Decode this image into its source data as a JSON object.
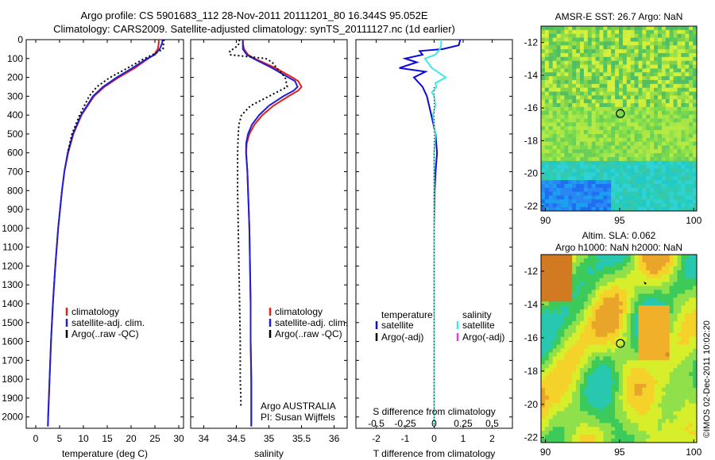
{
  "header": {
    "line1": "Argo profile: CS 5901683_112 28-Nov-2011 20111201_80 16.344S 95.052E",
    "line2": "Climatology: CARS2009. Satellite-adjusted climatology: synTS_20111127.nc (1d earlier)"
  },
  "colors": {
    "climatology": "#e0201b",
    "satellite": "#1f1fd6",
    "argo": "#000000",
    "t_satellite": "#0a0adc",
    "s_satellite": "#3ee8e8",
    "s_argo": "#e040e0"
  },
  "depth_axis": {
    "ticks": [
      0,
      100,
      200,
      300,
      400,
      500,
      600,
      700,
      800,
      900,
      1000,
      1100,
      1200,
      1300,
      1400,
      1500,
      1600,
      1700,
      1800,
      1900,
      2000
    ],
    "ylim": [
      0,
      2060
    ]
  },
  "panels": {
    "temperature": {
      "xlabel": "temperature (deg C)",
      "xticks": [
        "0",
        "5",
        "10",
        "15",
        "20",
        "25",
        "30"
      ],
      "legend": [
        "climatology",
        "satellite-adj. clim.",
        "Argo(..raw -QC)"
      ]
    },
    "salinity": {
      "xlabel": "salinity",
      "xticks": [
        "34",
        "34.5",
        "35",
        "35.5",
        "36"
      ],
      "legend": [
        "climatology",
        "satellite-adj. clim.",
        "Argo(..raw -QC)"
      ],
      "note1": "Argo AUSTRALIA",
      "note2": "PI: Susan Wijffels"
    },
    "difference": {
      "xlabel": "T difference from climatology",
      "toplabel": "S difference from climatology",
      "xticks": [
        "-2",
        "-1",
        "0",
        "1",
        "2"
      ],
      "sticks": [
        "-0.5",
        "-0.25",
        "0",
        "0.25",
        "0.5"
      ],
      "legend_t_head": "temperature",
      "legend_s_head": "salinity",
      "legend_sat": "satellite",
      "legend_argo": "Argo(-adj)"
    }
  },
  "maps": {
    "sst": {
      "title": "AMSR-E SST: 26.7  Argo: NaN",
      "yticks": [
        "-12",
        "-14",
        "-16",
        "-18",
        "-20",
        "-22"
      ],
      "xticks": [
        "90",
        "95",
        "100"
      ]
    },
    "sla": {
      "title1": "Altim. SLA: 0.062",
      "title2": "Argo h1000: NaN h2000: NaN",
      "yticks": [
        "-12",
        "-14",
        "-16",
        "-18",
        "-20",
        "-22"
      ],
      "xticks": [
        "90",
        "95",
        "100"
      ]
    }
  },
  "credit": "©IMOS 02-Dec-2011 10:02:20",
  "chart_data": [
    {
      "type": "line",
      "title": "",
      "xlabel": "temperature (deg C)",
      "ylabel": "",
      "xlim": [
        -2,
        31
      ],
      "ylim": [
        2060,
        0
      ],
      "series": [
        {
          "name": "climatology",
          "depth": [
            0,
            20,
            50,
            80,
            100,
            150,
            200,
            250,
            300,
            400,
            500,
            600,
            700,
            800,
            900,
            1000,
            1200,
            1400,
            1600,
            1800,
            2000,
            2050
          ],
          "values": [
            25.8,
            25.8,
            25.6,
            24.8,
            23.6,
            20.8,
            17.4,
            14.4,
            12.2,
            9.6,
            7.9,
            6.8,
            6.0,
            5.5,
            5.1,
            4.7,
            4.1,
            3.6,
            3.2,
            2.9,
            2.6,
            2.55
          ]
        },
        {
          "name": "satellite-adj. clim.",
          "depth": [
            0,
            20,
            50,
            80,
            100,
            150,
            200,
            250,
            300,
            400,
            500,
            600,
            700,
            800,
            900,
            1000,
            1200,
            1400,
            1600,
            1800,
            2000,
            2050
          ],
          "values": [
            26.6,
            26.5,
            26.0,
            25.0,
            23.4,
            20.3,
            17.0,
            14.1,
            12.0,
            9.5,
            7.8,
            6.7,
            6.0,
            5.5,
            5.1,
            4.7,
            4.1,
            3.6,
            3.2,
            2.9,
            2.6,
            2.55
          ]
        },
        {
          "name": "Argo(..raw -QC)",
          "depth": [
            0,
            20,
            50,
            80,
            100,
            150,
            200,
            250,
            300,
            400,
            500,
            600
          ],
          "values": [
            26.9,
            26.8,
            26.7,
            24.5,
            22.8,
            19.3,
            15.6,
            12.8,
            11.2,
            9.2,
            7.6,
            6.7
          ]
        }
      ]
    },
    {
      "type": "line",
      "title": "",
      "xlabel": "salinity",
      "ylabel": "",
      "xlim": [
        33.8,
        36.2
      ],
      "ylim": [
        2060,
        0
      ],
      "series": [
        {
          "name": "climatology",
          "depth": [
            0,
            20,
            50,
            80,
            100,
            150,
            200,
            220,
            250,
            270,
            300,
            350,
            400,
            450,
            500,
            550,
            600,
            700,
            800,
            900,
            1000,
            1200,
            1400,
            1600,
            1800,
            2000,
            2050
          ],
          "values": [
            34.6,
            34.6,
            34.62,
            34.68,
            34.78,
            35.1,
            35.36,
            35.45,
            35.5,
            35.45,
            35.3,
            35.07,
            34.9,
            34.78,
            34.7,
            34.66,
            34.65,
            34.67,
            34.68,
            34.69,
            34.7,
            34.71,
            34.72,
            34.72,
            34.73,
            34.73,
            34.73
          ]
        },
        {
          "name": "satellite-adj. clim.",
          "depth": [
            0,
            20,
            50,
            80,
            100,
            150,
            200,
            220,
            250,
            270,
            300,
            350,
            400,
            450,
            500,
            550,
            600,
            700,
            800,
            900,
            1000,
            1200,
            1400,
            1600,
            1800,
            2000,
            2050
          ],
          "values": [
            34.6,
            34.6,
            34.6,
            34.66,
            34.76,
            35.05,
            35.3,
            35.4,
            35.44,
            35.38,
            35.22,
            35.0,
            34.85,
            34.74,
            34.68,
            34.65,
            34.65,
            34.67,
            34.68,
            34.69,
            34.7,
            34.71,
            34.72,
            34.72,
            34.73,
            34.73,
            34.73
          ]
        },
        {
          "name": "Argo(..raw -QC)",
          "depth": [
            0,
            30,
            50,
            60,
            80,
            100,
            120,
            150,
            200,
            250,
            300,
            350,
            400,
            450,
            500,
            600,
            700,
            800,
            1000,
            1200,
            1400,
            1600,
            1800,
            1900,
            1950
          ],
          "values": [
            34.55,
            34.53,
            34.45,
            34.4,
            34.4,
            34.95,
            35.05,
            35.12,
            35.25,
            35.28,
            35.0,
            34.72,
            34.58,
            34.54,
            34.53,
            34.52,
            34.52,
            34.52,
            34.53,
            34.54,
            34.55,
            34.56,
            34.56,
            34.57,
            34.57
          ]
        }
      ]
    },
    {
      "type": "line",
      "title": "",
      "xlabel": "T difference from climatology",
      "ylabel": "",
      "xlim": [
        -2.7,
        2.7
      ],
      "ylim": [
        2060,
        0
      ],
      "series": [
        {
          "name": "temperature satellite",
          "depth": [
            0,
            30,
            50,
            60,
            80,
            100,
            120,
            150,
            170,
            200,
            250,
            300,
            400,
            500,
            600,
            700,
            800,
            1000,
            1500,
            2050
          ],
          "values": [
            0.9,
            0.85,
            0.3,
            -0.5,
            -0.4,
            -1.0,
            -0.6,
            -1.2,
            -0.3,
            -0.7,
            -0.4,
            -0.25,
            -0.1,
            0.05,
            0.1,
            0.05,
            0.02,
            0.0,
            0.0,
            0.0
          ]
        },
        {
          "name": "salinity satellite",
          "depth": [
            0,
            30,
            50,
            80,
            100,
            150,
            200,
            230,
            250,
            280,
            300,
            350,
            400,
            500,
            600,
            700,
            800,
            1000,
            1500,
            2050
          ],
          "values": [
            0.06,
            0.06,
            0.05,
            0.01,
            -0.08,
            -0.02,
            0.1,
            0.01,
            0.02,
            -0.02,
            0.0,
            0.01,
            -0.01,
            0.01,
            0.0,
            0.0,
            0.0,
            0.0,
            0.0,
            0.0
          ]
        }
      ]
    }
  ]
}
